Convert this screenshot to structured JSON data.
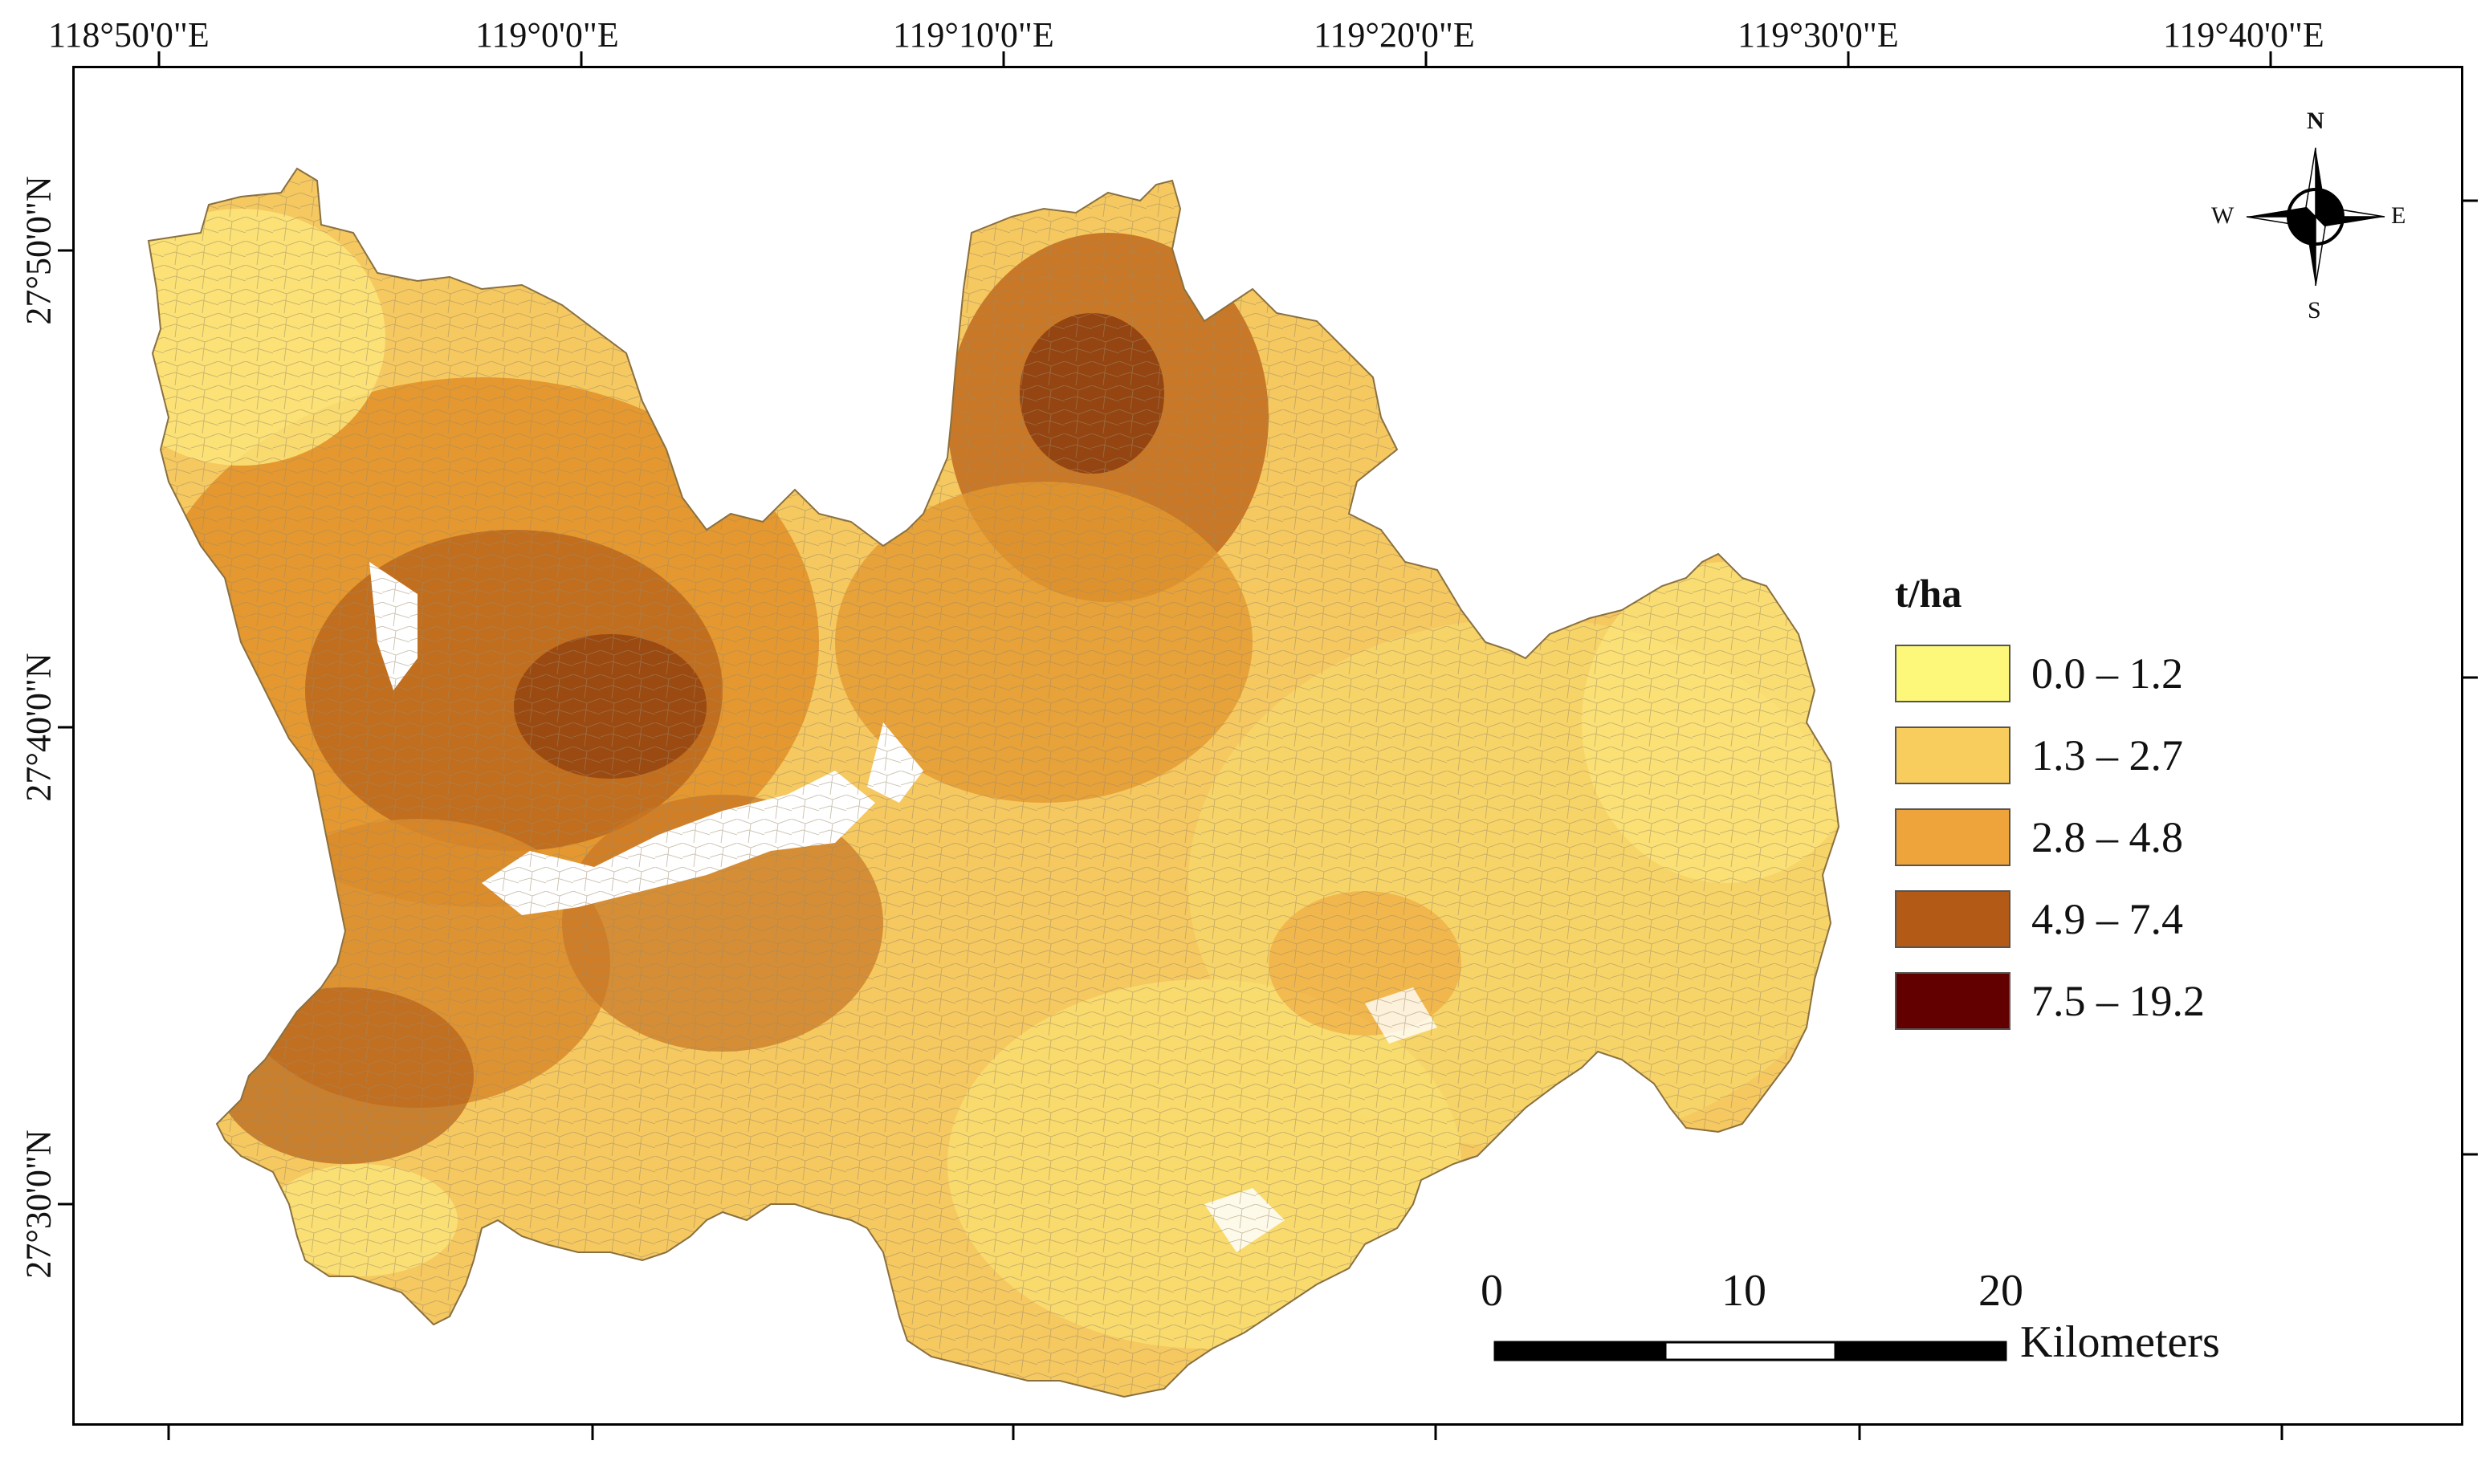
{
  "map": {
    "lon_ticks": [
      "118°50'0\"E",
      "119°0'0\"E",
      "119°10'0\"E",
      "119°20'0\"E",
      "119°30'0\"E",
      "119°40'0\"E"
    ],
    "lat_ticks": [
      "27°50'0\"N",
      "27°40'0\"N",
      "27°30'0\"N"
    ]
  },
  "legend": {
    "title": "t/ha",
    "classes": [
      {
        "label": "0.0 – 1.2",
        "color": "#fdf77a"
      },
      {
        "label": "1.3 – 2.7",
        "color": "#f8cd5e"
      },
      {
        "label": "2.8 – 4.8",
        "color": "#eea43a"
      },
      {
        "label": "4.9 – 7.4",
        "color": "#b25a16"
      },
      {
        "label": "7.5 – 19.2",
        "color": "#620000"
      }
    ]
  },
  "scale_bar": {
    "ticks": [
      "0",
      "10",
      "20"
    ],
    "unit": "Kilometers"
  },
  "compass": {
    "n": "N",
    "s": "S",
    "e": "E",
    "w": "W"
  }
}
